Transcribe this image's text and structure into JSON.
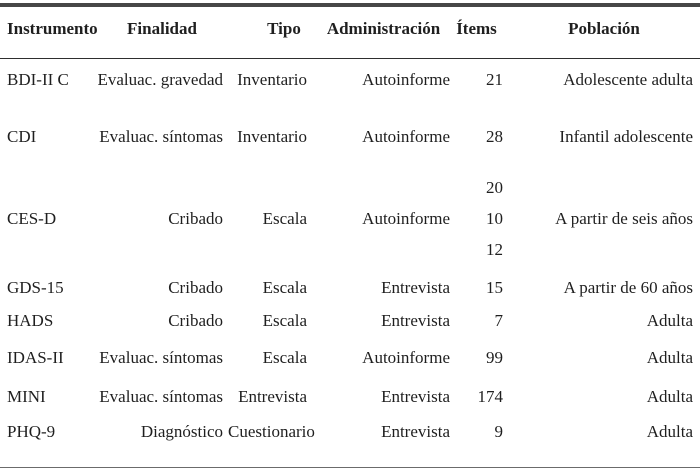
{
  "table": {
    "columns": [
      {
        "key": "instrumento",
        "label": "Instrumento"
      },
      {
        "key": "finalidad",
        "label": "Finalidad"
      },
      {
        "key": "tipo",
        "label": "Tipo"
      },
      {
        "key": "administracion",
        "label": "Administración"
      },
      {
        "key": "items",
        "label": "Ítems"
      },
      {
        "key": "poblacion",
        "label": "Población"
      }
    ],
    "rows": [
      {
        "instrumento": "BDI-II C",
        "finalidad": "Evaluac. gravedad",
        "tipo": "Inventario",
        "administracion": "Autoinforme",
        "items": [
          "21"
        ],
        "poblacion": "Adolescente adulta"
      },
      {
        "instrumento": "CDI",
        "finalidad": "Evaluac. síntomas",
        "tipo": "Inventario",
        "administracion": "Autoinforme",
        "items": [
          "28"
        ],
        "poblacion": "Infantil adolescente"
      },
      {
        "instrumento": "CES-D",
        "finalidad": "Cribado",
        "tipo": "Escala",
        "administracion": "Autoinforme",
        "items": [
          "20",
          "10",
          "12"
        ],
        "poblacion": "A partir de seis años"
      },
      {
        "instrumento": "GDS-15",
        "finalidad": "Cribado",
        "tipo": "Escala",
        "administracion": "Entrevista",
        "items": [
          "15"
        ],
        "poblacion": "A partir de 60 años"
      },
      {
        "instrumento": "HADS",
        "finalidad": "Cribado",
        "tipo": "Escala",
        "administracion": "Entrevista",
        "items": [
          "7"
        ],
        "poblacion": "Adulta"
      },
      {
        "instrumento": "IDAS-II",
        "finalidad": "Evaluac. síntomas",
        "tipo": "Escala",
        "administracion": "Autoinforme",
        "items": [
          "99"
        ],
        "poblacion": "Adulta"
      },
      {
        "instrumento": "MINI",
        "finalidad": "Evaluac. síntomas",
        "tipo": "Entrevista",
        "administracion": "Entrevista",
        "items": [
          "174"
        ],
        "poblacion": "Adulta"
      },
      {
        "instrumento": "PHQ-9",
        "finalidad": "Diagnóstico",
        "tipo": "Cuestionario",
        "administracion": "Entrevista",
        "items": [
          "9"
        ],
        "poblacion": "Adulta"
      }
    ]
  },
  "colors": {
    "text": "#1f1f1f",
    "rule_top": "#474747",
    "rule_bottom": "#6b6b6b",
    "header_divider": "#2e2e2e",
    "background": "#ffffff"
  }
}
